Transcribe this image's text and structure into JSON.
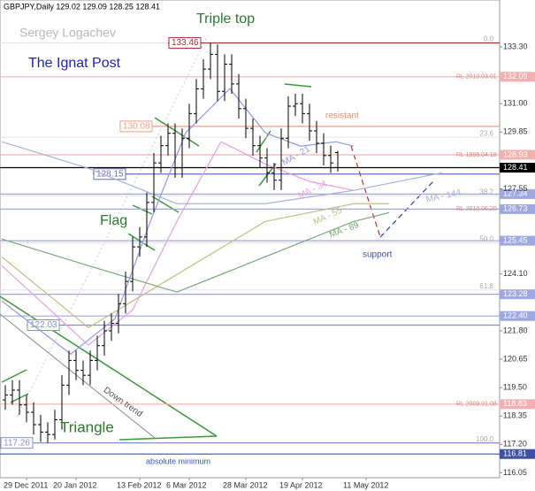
{
  "chart_data": {
    "type": "ohlc",
    "title": "GBPJPY,Daily  129.02 129.09 128.25 128.41",
    "watermark": "Sergey Logachev",
    "brand": "The Ignat Post",
    "categories": [
      null,
      null,
      null,
      "29 Dec 2011",
      null,
      null,
      null,
      null,
      null,
      null,
      "20 Jan 2012",
      null,
      null,
      null,
      null,
      null,
      null,
      null,
      null,
      "13 Feb 2012",
      null,
      null,
      null,
      null,
      null,
      null,
      "6 Mar 2012",
      null,
      null,
      null,
      null,
      null,
      null,
      null,
      "28 Mar 2012",
      null,
      null,
      null,
      null,
      null,
      null,
      null,
      "19 Apr 2012",
      null,
      null,
      null,
      null,
      null,
      null,
      null,
      null,
      "11 May 2012"
    ],
    "open": [
      119.0,
      119.2,
      119.4,
      118.8,
      118.5,
      118.0,
      117.7,
      117.6,
      118.2,
      119.6,
      120.6,
      120.2,
      120.0,
      120.6,
      121.2,
      121.8,
      122.1,
      122.9,
      123.8,
      125.2,
      125.6,
      127.0,
      128.6,
      129.3,
      129.8,
      128.4,
      129.6,
      130.6,
      131.6,
      132.4,
      133.0,
      131.5,
      132.6,
      131.8,
      130.8,
      130.0,
      129.3,
      128.8,
      128.2,
      127.9,
      129.6,
      130.9,
      131.0,
      130.6,
      129.9,
      129.4,
      128.9,
      129.02,
      null,
      null,
      null,
      null
    ],
    "high": [
      119.6,
      119.8,
      119.8,
      119.2,
      118.9,
      118.4,
      118.1,
      118.6,
      120.0,
      121.0,
      121.0,
      120.6,
      121.0,
      121.6,
      122.2,
      122.5,
      123.3,
      124.2,
      125.6,
      126.0,
      127.4,
      129.0,
      129.7,
      130.2,
      130.2,
      130.0,
      131.0,
      132.0,
      132.8,
      133.46,
      133.4,
      133.0,
      133.0,
      132.2,
      131.2,
      130.4,
      129.7,
      129.2,
      128.6,
      130.0,
      131.3,
      131.4,
      131.4,
      131.0,
      130.3,
      129.8,
      129.3,
      129.09,
      null,
      null,
      null,
      null
    ],
    "low": [
      118.6,
      118.8,
      118.4,
      118.1,
      117.6,
      117.3,
      117.26,
      117.4,
      117.8,
      119.2,
      119.8,
      119.6,
      119.6,
      120.2,
      120.8,
      121.4,
      121.7,
      122.5,
      123.4,
      124.8,
      125.2,
      126.6,
      128.2,
      128.9,
      128.0,
      128.0,
      129.2,
      130.2,
      131.2,
      132.0,
      131.1,
      131.1,
      131.4,
      130.4,
      129.6,
      128.9,
      128.4,
      127.8,
      127.5,
      127.5,
      129.2,
      130.5,
      130.2,
      129.5,
      129.0,
      128.5,
      128.2,
      128.25,
      null,
      null,
      null,
      null
    ],
    "close": [
      119.2,
      119.4,
      118.8,
      118.5,
      118.0,
      117.7,
      117.6,
      118.2,
      119.6,
      120.6,
      120.2,
      120.0,
      120.6,
      121.2,
      121.8,
      122.1,
      122.9,
      123.8,
      125.2,
      125.6,
      127.0,
      128.6,
      129.3,
      129.8,
      128.4,
      129.6,
      130.6,
      131.6,
      132.4,
      133.0,
      131.5,
      132.6,
      131.8,
      130.8,
      130.0,
      129.3,
      128.8,
      128.2,
      127.9,
      129.6,
      130.9,
      131.0,
      130.6,
      129.9,
      129.4,
      128.9,
      128.6,
      128.41,
      null,
      null,
      null,
      null
    ],
    "bar_color": "#000000",
    "ylim": [
      115.85,
      135.2
    ],
    "yticks": [
      {
        "value": 133.3,
        "label": "133.30"
      },
      {
        "value": 131,
        "label": "131.00"
      },
      129.85,
      127.55,
      {
        "value": 124.1,
        "label": "124.10"
      },
      {
        "value": 121.8,
        "label": "121.80"
      },
      120.65,
      {
        "value": 119.5,
        "label": "119.50"
      },
      118.35,
      {
        "value": 117.2,
        "label": "117.20"
      },
      116.05
    ],
    "moving_averages": [
      {
        "name": "MA - 21",
        "color": "#9098e8",
        "x": [
          -0.5,
          9.25,
          15.5,
          20.5,
          25.5,
          31.75,
          36.75,
          41.75,
          46.75,
          49.25
        ],
        "values": [
          123.01,
          120.86,
          122.29,
          126.23,
          129.82,
          131.61,
          129.82,
          129.28,
          129.46,
          129.28
        ]
      },
      {
        "name": "MA - 34",
        "color": "#e8a0e0",
        "x": [
          -0.5,
          11.75,
          18,
          24.25,
          30.5,
          36.75,
          43,
          49.25
        ],
        "values": [
          124.44,
          121.22,
          122.65,
          126.23,
          129.46,
          128.56,
          127.85,
          127.49
        ]
      },
      {
        "name": "MA - 55",
        "color": "#c0c080",
        "x": [
          -0.5,
          11.75,
          24.25,
          36.75,
          49.25,
          54.25
        ],
        "values": [
          124.8,
          121.93,
          124.08,
          126.23,
          126.95,
          126.95
        ]
      },
      {
        "name": "MA - 89",
        "color": "#78a878",
        "x": [
          -0.5,
          11.75,
          24.25,
          36.75,
          49.25,
          54.25
        ],
        "values": [
          125.52,
          124.44,
          123.37,
          124.8,
          126.23,
          126.59
        ]
      },
      {
        "name": "MA - 144",
        "color": "#a8b4d4",
        "x": [
          -0.5,
          11.75,
          24.25,
          36.75,
          49.25,
          61.75
        ],
        "values": [
          129.46,
          128.38,
          126.95,
          126.95,
          127.49,
          128.2
        ]
      }
    ],
    "levels": [
      {
        "value": 133.46,
        "color": "#a03030",
        "kind": "box"
      },
      {
        "value": 132.09,
        "color": "#f4b0b0",
        "kind": "tag",
        "note": "RL 2010.03.01"
      },
      {
        "value": 130.08,
        "color": "#f0a080",
        "kind": "box"
      },
      {
        "value": 128.93,
        "color": "#f4b0b0",
        "kind": "tag",
        "note": "RL 1995.04.18"
      },
      {
        "value": 128.15,
        "color": "#6070c0",
        "kind": "box"
      },
      {
        "value": 128.41,
        "color": "#000000",
        "kind": "tag"
      },
      {
        "value": 127.34,
        "color": "#a0a8e0",
        "kind": "tag"
      },
      {
        "value": 126.73,
        "color": "#a0a8e0",
        "kind": "tag",
        "note": "RL 2010.06.20"
      },
      {
        "value": 125.45,
        "color": "#a0a8e0",
        "kind": "tag"
      },
      {
        "value": 123.28,
        "color": "#a0a8e0",
        "kind": "tag"
      },
      {
        "value": {
          "value": 122.4,
          "label": "122.40"
        },
        "color": "#a0a8e0",
        "kind": "tag"
      },
      {
        "value": 122.03,
        "color": "#8090d0",
        "kind": "box"
      },
      {
        "value": 118.83,
        "color": "#f4b0b0",
        "kind": "tag",
        "note": "RL 2009.01.08"
      },
      {
        "value": 117.26,
        "color": "#8090d0",
        "kind": "box"
      },
      {
        "value": 116.81,
        "color": "#4050a0",
        "kind": "tag"
      }
    ],
    "fibonacci": [
      {
        "label": "0.0",
        "value": 133.46
      },
      {
        "label": "23.6",
        "value": 129.64
      },
      {
        "label": "38.2",
        "value": 127.27
      },
      {
        "label": "50.0",
        "value": 125.36
      },
      {
        "label": "61.8",
        "value": 123.45
      },
      {
        "label": "100.0",
        "value": 117.26
      }
    ],
    "annotations": {
      "triple_top": "Triple top",
      "flag": "Flag",
      "triangle": "Triangle",
      "resistant": "resistant",
      "support": "support",
      "absolute_minimum": "absolute minimum",
      "down_trend": "Down trend"
    }
  }
}
